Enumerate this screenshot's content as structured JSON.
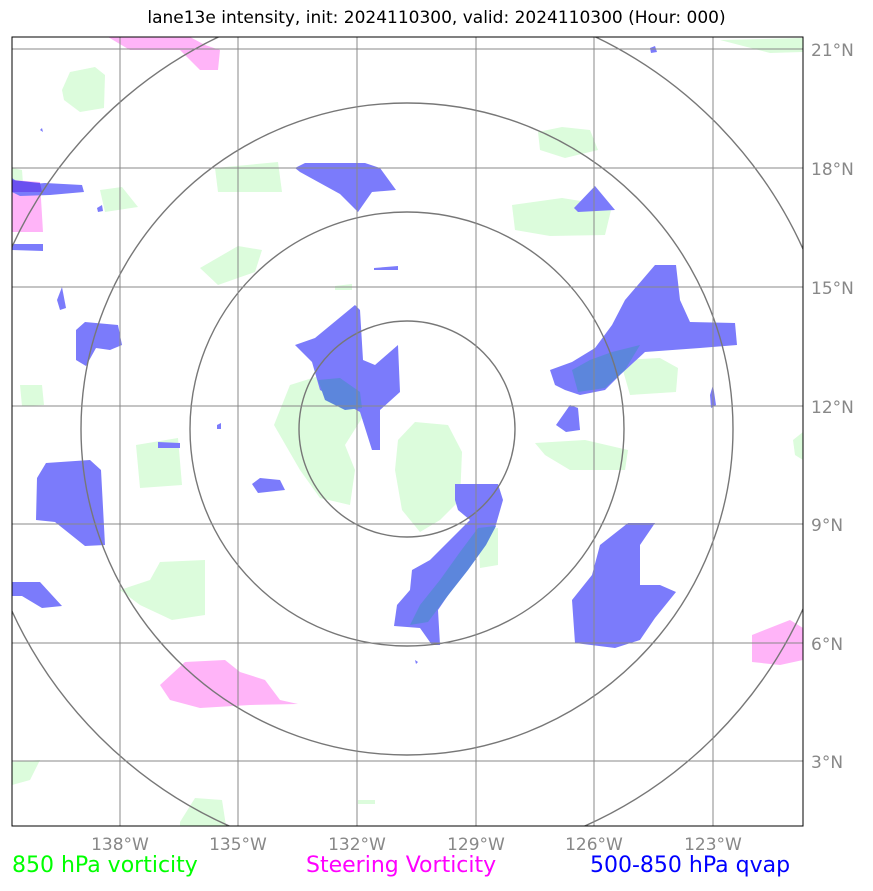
{
  "title": "lane13e intensity, init: 2024110300, valid: 2024110300 (Hour: 000)",
  "lon_ticks": [
    "138°W",
    "135°W",
    "132°W",
    "129°W",
    "126°W",
    "123°W"
  ],
  "lat_ticks": [
    "21°N",
    "18°N",
    "15°N",
    "12°N",
    "9°N",
    "6°N",
    "3°N"
  ],
  "legend": {
    "green": {
      "label": "850 hPa vorticity",
      "color": "#00ff00"
    },
    "magenta": {
      "label": "Steering Vorticity",
      "color": "#ff00ff"
    },
    "blue": {
      "label": "500-850 hPa qvap",
      "color": "#0000ff"
    }
  },
  "colors": {
    "green_fill": "#dcfcdc",
    "magenta_fill": "#ffb4f8",
    "blue_fill": "#7b7bfb",
    "overlap_fill": "#5c86dc",
    "grid": "#888888",
    "rings": "#777777"
  }
}
